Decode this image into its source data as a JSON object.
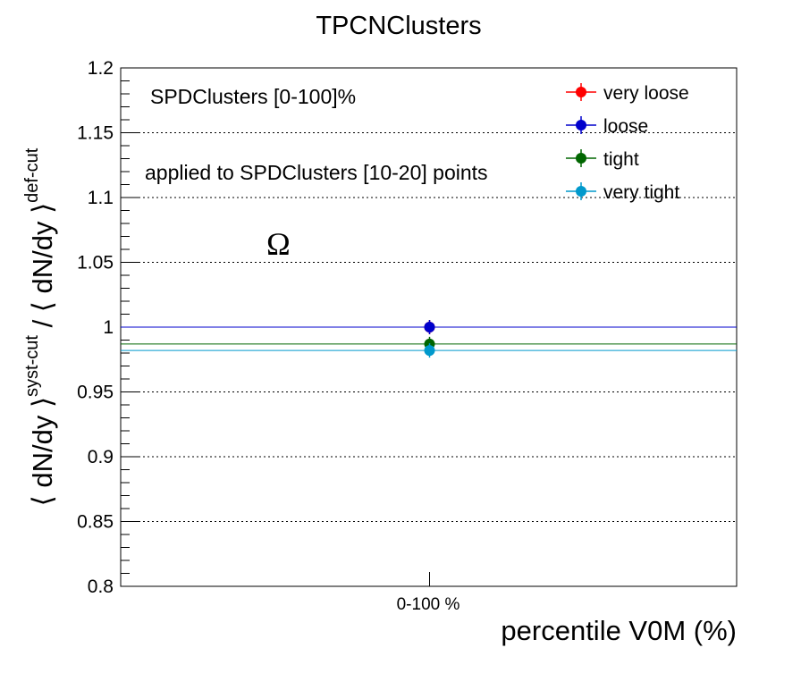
{
  "chart_data": {
    "type": "scatter",
    "title": "TPCNClusters",
    "xlabel": "percentile V0M (%)",
    "ylabel_main": "⟨ dN/dy ⟩",
    "ylabel_sup1": "syst-cut",
    "ylabel_mid": " / ⟨ dN/dy ⟩",
    "ylabel_sup2": "def-cut",
    "categories": [
      "0-100 %"
    ],
    "ylim": [
      0.8,
      1.2
    ],
    "yticks": [
      "0.8",
      "0.85",
      "0.9",
      "0.95",
      "1",
      "1.05",
      "1.1",
      "1.15",
      "1.2"
    ],
    "grid": "horizontal-dotted",
    "legend_position": "top-right",
    "annotations": {
      "line1": "SPDClusters [0-100]%",
      "line2": "applied to SPDClusters [10-20] points",
      "particle": "Ω"
    },
    "series": [
      {
        "name": "very loose",
        "color": "#ff0000",
        "values": [
          1.0
        ],
        "draw_line": false
      },
      {
        "name": "loose",
        "color": "#0000cc",
        "values": [
          1.0
        ],
        "draw_line": true
      },
      {
        "name": "tight",
        "color": "#006600",
        "values": [
          0.987
        ],
        "draw_line": true
      },
      {
        "name": "very tight",
        "color": "#0099cc",
        "values": [
          0.982
        ],
        "draw_line": true
      }
    ]
  }
}
